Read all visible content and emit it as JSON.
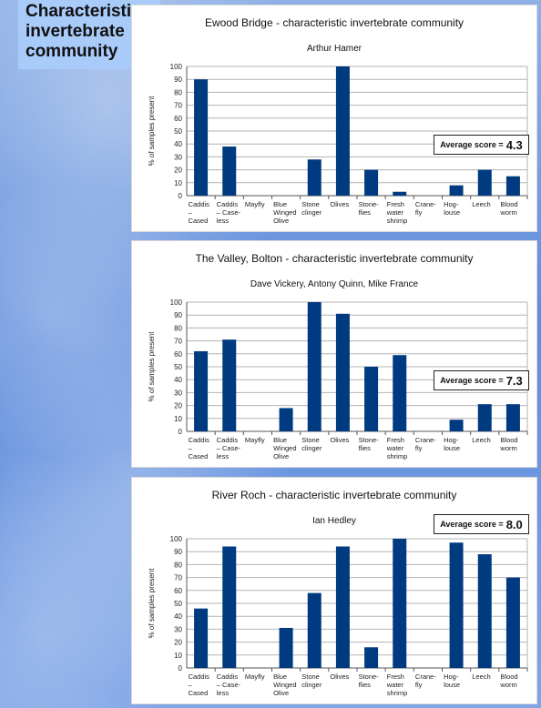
{
  "page": {
    "heading": "Characteristic invertebrate community"
  },
  "colors": {
    "bar": "#003a80",
    "grid": "#b3b3b3",
    "axis": "#555555"
  },
  "chart_data": [
    {
      "type": "bar",
      "title": "Ewood Bridge - characteristic invertebrate community",
      "subtitle": "Arthur Hamer",
      "ylabel": "% of samples present",
      "ylim": [
        0,
        100
      ],
      "yticks": [
        0,
        10,
        20,
        30,
        40,
        50,
        60,
        70,
        80,
        90,
        100
      ],
      "grid": true,
      "categories": [
        [
          "Caddis",
          "–",
          "Cased"
        ],
        [
          "Caddis",
          "– Case-",
          "less"
        ],
        [
          "Mayfly"
        ],
        [
          "Blue",
          "Winged",
          "Olive"
        ],
        [
          "Stone",
          "clinger"
        ],
        [
          "Olives"
        ],
        [
          "Stone-",
          "flies"
        ],
        [
          "Fresh",
          "water",
          "shrimp"
        ],
        [
          "Crane-",
          "fly"
        ],
        [
          "Hog-",
          "louse"
        ],
        [
          "Leech"
        ],
        [
          "Blood",
          "worm"
        ]
      ],
      "values": [
        90,
        38,
        0,
        0,
        28,
        100,
        20,
        3,
        0,
        8,
        20,
        15
      ],
      "score_label": "Average score =",
      "score_value": "4.3"
    },
    {
      "type": "bar",
      "title": "The Valley, Bolton - characteristic invertebrate community",
      "subtitle": "Dave Vickery, Antony Quinn, Mike France",
      "ylabel": "% of samples present",
      "ylim": [
        0,
        100
      ],
      "yticks": [
        0,
        10,
        20,
        30,
        40,
        50,
        60,
        70,
        80,
        90,
        100
      ],
      "grid": true,
      "categories": [
        [
          "Caddis",
          "–",
          "Cased"
        ],
        [
          "Caddis",
          "– Case-",
          "less"
        ],
        [
          "Mayfly"
        ],
        [
          "Blue",
          "Winged",
          "Olive"
        ],
        [
          "Stone",
          "clinger"
        ],
        [
          "Olives"
        ],
        [
          "Stone-",
          "flies"
        ],
        [
          "Fresh",
          "water",
          "shrimp"
        ],
        [
          "Crane-",
          "fly"
        ],
        [
          "Hog-",
          "louse"
        ],
        [
          "Leech"
        ],
        [
          "Blood",
          "worm"
        ]
      ],
      "values": [
        62,
        71,
        0,
        18,
        100,
        91,
        50,
        59,
        0,
        9,
        21,
        21
      ],
      "score_label": "Average score =",
      "score_value": "7.3"
    },
    {
      "type": "bar",
      "title": "River Roch - characteristic invertebrate community",
      "subtitle": "Ian Hedley",
      "ylabel": "% of samples present",
      "ylim": [
        0,
        100
      ],
      "yticks": [
        0,
        10,
        20,
        30,
        40,
        50,
        60,
        70,
        80,
        90,
        100
      ],
      "grid": true,
      "categories": [
        [
          "Caddis",
          "–",
          "Cased"
        ],
        [
          "Caddis",
          "– Case-",
          "less"
        ],
        [
          "Mayfly"
        ],
        [
          "Blue",
          "Winged",
          "Olive"
        ],
        [
          "Stone",
          "clinger"
        ],
        [
          "Olives"
        ],
        [
          "Stone-",
          "flies"
        ],
        [
          "Fresh",
          "water",
          "shrimp"
        ],
        [
          "Crane-",
          "fly"
        ],
        [
          "Hog-",
          "louse"
        ],
        [
          "Leech"
        ],
        [
          "Blood",
          "worm"
        ]
      ],
      "values": [
        46,
        94,
        0,
        31,
        58,
        94,
        16,
        100,
        0,
        97,
        88,
        70
      ],
      "score_label": "Average score =",
      "score_value": "8.0"
    }
  ]
}
